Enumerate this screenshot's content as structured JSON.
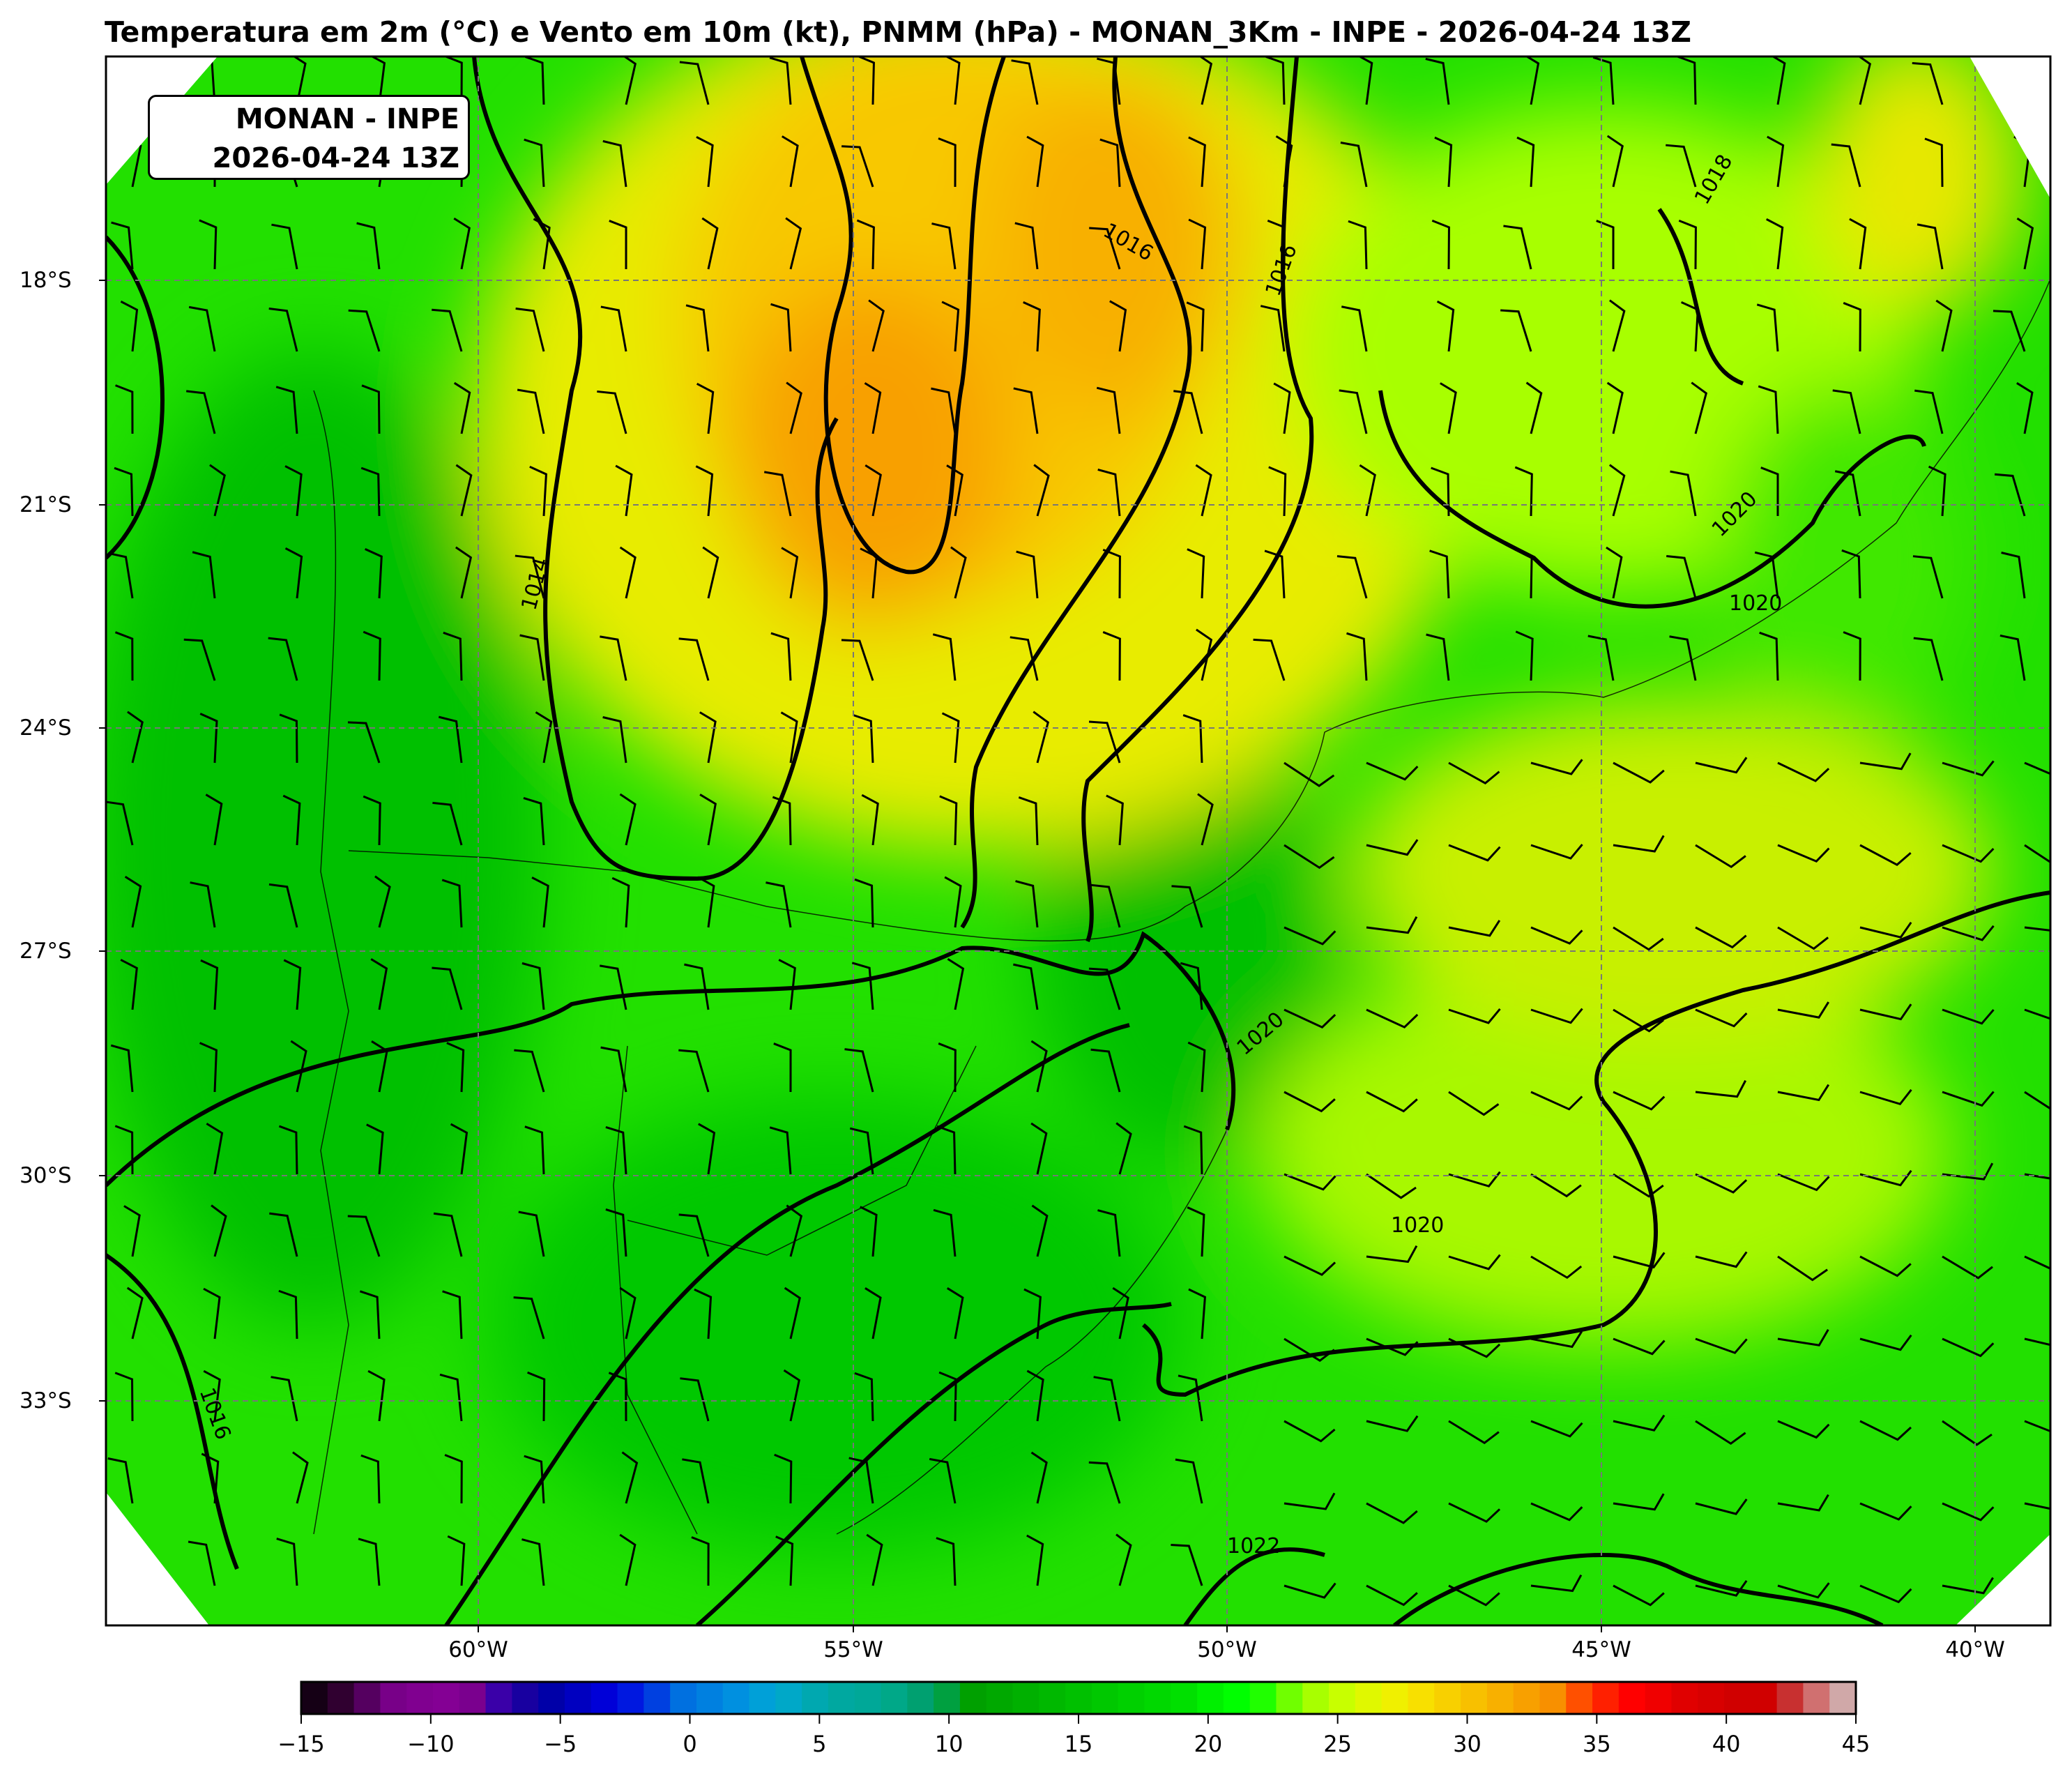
{
  "title": "Temperatura em 2m (°C) e Vento em 10m (kt), PNMM (hPa)  - MONAN_3Km - INPE - 2026-04-24 13Z",
  "stamp": {
    "line1": "MONAN - INPE",
    "line2": "2026-04-24 13Z"
  },
  "latitude_labels": [
    "18°S",
    "21°S",
    "24°S",
    "27°S",
    "30°S",
    "33°S"
  ],
  "longitude_labels": [
    "60°W",
    "55°W",
    "50°W",
    "45°W",
    "40°W"
  ],
  "isobar_labels": [
    "1016",
    "1016",
    "1018",
    "1014",
    "1020",
    "1020",
    "1020",
    "1020",
    "1016",
    "1022"
  ],
  "colorbar": {
    "ticks": [
      "−15",
      "−10",
      "−5",
      "0",
      "5",
      "10",
      "15",
      "20",
      "25",
      "30",
      "35",
      "40",
      "45"
    ],
    "colors": [
      "#150015",
      "#300030",
      "#550060",
      "#780088",
      "#800090",
      "#840094",
      "#7a008e",
      "#3a00a8",
      "#1800a0",
      "#0000a8",
      "#0000c0",
      "#0000d8",
      "#0018e0",
      "#0040e0",
      "#0070e0",
      "#0080e0",
      "#0090e0",
      "#00a0d8",
      "#00a8c8",
      "#00a8b0",
      "#00a8a0",
      "#00a898",
      "#00a888",
      "#00a070",
      "#00a040",
      "#00a000",
      "#00a800",
      "#00b000",
      "#00b800",
      "#00c000",
      "#00c800",
      "#00d000",
      "#00d800",
      "#00e000",
      "#00f000",
      "#00ff00",
      "#20ff00",
      "#70ff00",
      "#a8ff00",
      "#c8ff00",
      "#e0f800",
      "#f0f000",
      "#f8e000",
      "#f8d000",
      "#f8c000",
      "#f8b000",
      "#f8a000",
      "#f89000",
      "#ff5000",
      "#ff2000",
      "#ff0000",
      "#f00000",
      "#e00000",
      "#d80000",
      "#d00000",
      "#d00000",
      "#c83030",
      "#d07070",
      "#d0a8a8"
    ],
    "min": -15,
    "max": 45,
    "unit": "°C"
  },
  "colors": {
    "warm": "#f5a000",
    "yellow": "#e6f000",
    "green": "#20e000",
    "dark_green": "#00b800"
  }
}
